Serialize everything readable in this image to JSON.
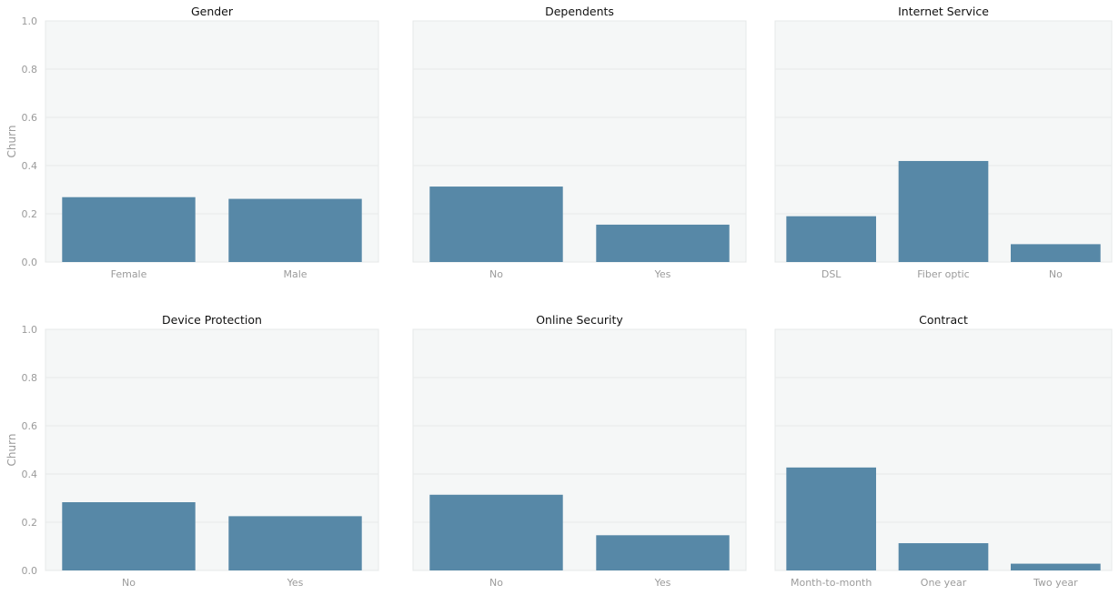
{
  "colors": {
    "bar": "#5788a7",
    "panel_background": "#f5f7f7",
    "tick_text": "#9b9b9b",
    "title_text": "#111111"
  },
  "chart_data": [
    {
      "type": "bar",
      "title": "Gender",
      "categories": [
        "Female",
        "Male"
      ],
      "values": [
        0.269,
        0.262
      ],
      "ylabel": "Churn",
      "ylim": [
        0,
        1.0
      ],
      "yticks": [
        "0.0",
        "0.2",
        "0.4",
        "0.6",
        "0.8",
        "1.0"
      ],
      "grid": true
    },
    {
      "type": "bar",
      "title": "Dependents",
      "categories": [
        "No",
        "Yes"
      ],
      "values": [
        0.313,
        0.155
      ],
      "ylabel": "",
      "ylim": [
        0,
        1.0
      ],
      "grid": true
    },
    {
      "type": "bar",
      "title": "Internet Service",
      "categories": [
        "DSL",
        "Fiber optic",
        "No"
      ],
      "values": [
        0.19,
        0.419,
        0.074
      ],
      "ylabel": "",
      "ylim": [
        0,
        1.0
      ],
      "grid": true
    },
    {
      "type": "bar",
      "title": "Device Protection",
      "categories": [
        "No",
        "Yes"
      ],
      "values": [
        0.283,
        0.225
      ],
      "ylabel": "Churn",
      "ylim": [
        0,
        1.0
      ],
      "yticks": [
        "0.0",
        "0.2",
        "0.4",
        "0.6",
        "0.8",
        "1.0"
      ],
      "grid": true
    },
    {
      "type": "bar",
      "title": "Online Security",
      "categories": [
        "No",
        "Yes"
      ],
      "values": [
        0.314,
        0.146
      ],
      "ylabel": "",
      "ylim": [
        0,
        1.0
      ],
      "grid": true
    },
    {
      "type": "bar",
      "title": "Contract",
      "categories": [
        "Month-to-month",
        "One year",
        "Two year"
      ],
      "values": [
        0.427,
        0.113,
        0.028
      ],
      "ylabel": "",
      "ylim": [
        0,
        1.0
      ],
      "grid": true
    }
  ]
}
